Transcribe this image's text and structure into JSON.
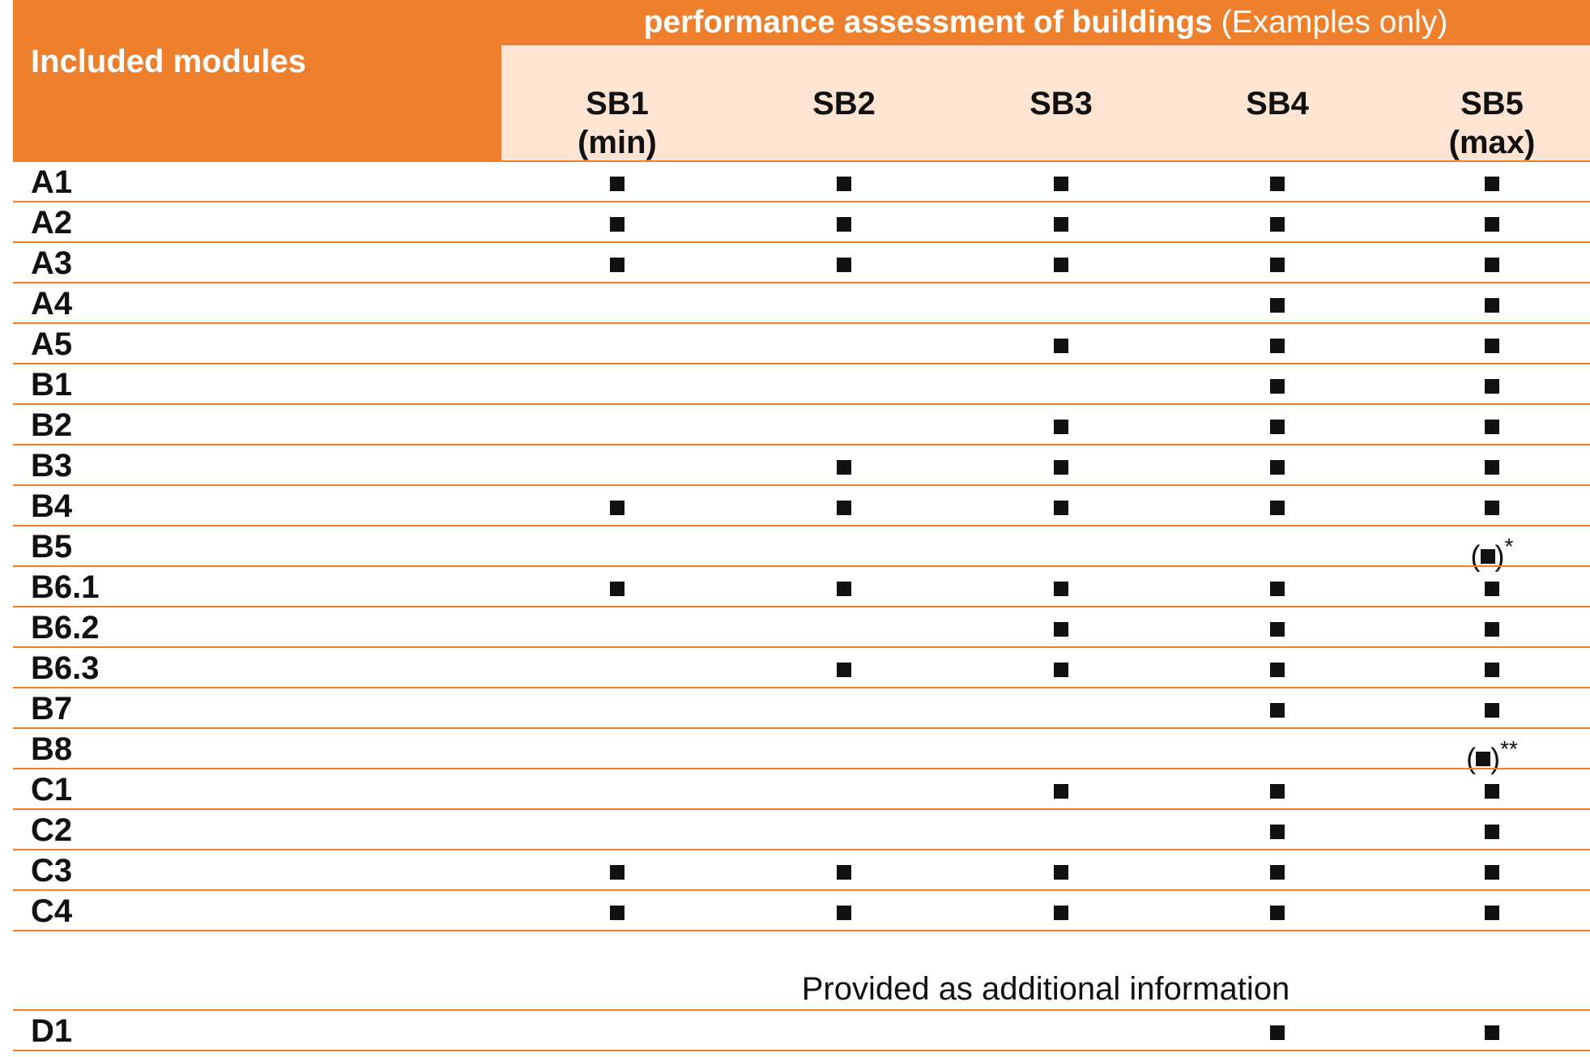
{
  "header": {
    "title_bold": "performance assessment of buildings",
    "title_light": "(Examples only)",
    "included_label": "Included modules",
    "columns": [
      {
        "name": "SB1",
        "sub": "(min)"
      },
      {
        "name": "SB2",
        "sub": ""
      },
      {
        "name": "SB3",
        "sub": ""
      },
      {
        "name": "SB4",
        "sub": ""
      },
      {
        "name": "SB5",
        "sub": "(max)"
      }
    ]
  },
  "rows": [
    {
      "module": "A1",
      "cells": [
        "x",
        "x",
        "x",
        "x",
        "x"
      ]
    },
    {
      "module": "A2",
      "cells": [
        "x",
        "x",
        "x",
        "x",
        "x"
      ]
    },
    {
      "module": "A3",
      "cells": [
        "x",
        "x",
        "x",
        "x",
        "x"
      ]
    },
    {
      "module": "A4",
      "cells": [
        "",
        "",
        "",
        "x",
        "x"
      ]
    },
    {
      "module": "A5",
      "cells": [
        "",
        "",
        "x",
        "x",
        "x"
      ]
    },
    {
      "module": "B1",
      "cells": [
        "",
        "",
        "",
        "x",
        "x"
      ]
    },
    {
      "module": "B2",
      "cells": [
        "",
        "",
        "x",
        "x",
        "x"
      ]
    },
    {
      "module": "B3",
      "cells": [
        "",
        "x",
        "x",
        "x",
        "x"
      ]
    },
    {
      "module": "B4",
      "cells": [
        "x",
        "x",
        "x",
        "x",
        "x"
      ]
    },
    {
      "module": "B5",
      "cells": [
        "",
        "",
        "",
        "",
        "(x)*"
      ]
    },
    {
      "module": "B6.1",
      "cells": [
        "x",
        "x",
        "x",
        "x",
        "x"
      ]
    },
    {
      "module": "B6.2",
      "cells": [
        "",
        "",
        "x",
        "x",
        "x"
      ]
    },
    {
      "module": "B6.3",
      "cells": [
        "",
        "x",
        "x",
        "x",
        "x"
      ]
    },
    {
      "module": "B7",
      "cells": [
        "",
        "",
        "",
        "x",
        "x"
      ]
    },
    {
      "module": "B8",
      "cells": [
        "",
        "",
        "",
        "",
        "(x)**"
      ]
    },
    {
      "module": "C1",
      "cells": [
        "",
        "",
        "x",
        "x",
        "x"
      ]
    },
    {
      "module": "C2",
      "cells": [
        "",
        "",
        "",
        "x",
        "x"
      ]
    },
    {
      "module": "C3",
      "cells": [
        "x",
        "x",
        "x",
        "x",
        "x"
      ]
    },
    {
      "module": "C4",
      "cells": [
        "x",
        "x",
        "x",
        "x",
        "x"
      ]
    }
  ],
  "additional_note": "Provided as additional information",
  "extra_rows": [
    {
      "module": "D1",
      "cells": [
        "",
        "",
        "",
        "x",
        "x"
      ]
    }
  ],
  "colors": {
    "accent": "#ee7f2d",
    "header_fill": "#fde4d3",
    "mark": "#111111"
  }
}
